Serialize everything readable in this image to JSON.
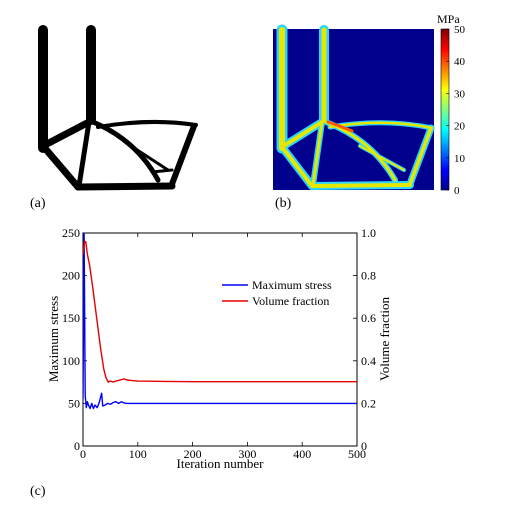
{
  "panels": {
    "a_label": "(a)",
    "b_label": "(b)",
    "c_label": "(c)"
  },
  "colorbar": {
    "unit": "MPa",
    "ticks": [
      "0",
      "10",
      "20",
      "30",
      "40",
      "50"
    ],
    "colors": [
      "#00008f",
      "#0000ff",
      "#0080ff",
      "#00ffff",
      "#80ff80",
      "#ffff00",
      "#ff8000",
      "#ff0000",
      "#800000"
    ]
  },
  "stress_map": {
    "background": "#00008c",
    "member_color": "#e6e600",
    "edge_color": "#2ad6ff",
    "hot_color": "#ff5a00"
  },
  "chart_data": {
    "type": "line",
    "xlabel": "Iteration number",
    "ylabel_left": "Maximum stress",
    "ylabel_right": "Volume fraction",
    "xlim": [
      0,
      500
    ],
    "ylim_left": [
      0,
      250
    ],
    "ylim_right": [
      0,
      1.0
    ],
    "x_ticks": [
      "0",
      "100",
      "200",
      "300",
      "400",
      "500"
    ],
    "y_left_ticks": [
      "0",
      "50",
      "100",
      "150",
      "200",
      "250"
    ],
    "y_right_ticks": [
      "0",
      "0.2",
      "0.4",
      "0.6",
      "0.8",
      "1.0"
    ],
    "legend_position": "upper-right",
    "grid": false,
    "series": [
      {
        "name": "Maximum stress",
        "axis": "left",
        "color": "#0000ff",
        "points": [
          [
            0,
            55
          ],
          [
            2,
            250
          ],
          [
            3,
            160
          ],
          [
            4,
            60
          ],
          [
            6,
            45
          ],
          [
            8,
            52
          ],
          [
            10,
            48
          ],
          [
            13,
            44
          ],
          [
            16,
            50
          ],
          [
            19,
            44
          ],
          [
            22,
            48
          ],
          [
            26,
            45
          ],
          [
            30,
            52
          ],
          [
            34,
            62
          ],
          [
            36,
            47
          ],
          [
            40,
            48
          ],
          [
            45,
            50
          ],
          [
            50,
            49
          ],
          [
            55,
            51
          ],
          [
            60,
            52
          ],
          [
            65,
            50
          ],
          [
            70,
            52
          ],
          [
            75,
            50.5
          ],
          [
            80,
            50
          ],
          [
            90,
            50
          ],
          [
            100,
            50
          ],
          [
            150,
            50
          ],
          [
            200,
            50
          ],
          [
            300,
            50
          ],
          [
            400,
            50
          ],
          [
            500,
            50
          ]
        ]
      },
      {
        "name": "Volume fraction",
        "axis": "right",
        "color": "#e60000",
        "points": [
          [
            0,
            0.9
          ],
          [
            3,
            0.96
          ],
          [
            5,
            0.96
          ],
          [
            8,
            0.9
          ],
          [
            12,
            0.85
          ],
          [
            18,
            0.74
          ],
          [
            25,
            0.6
          ],
          [
            32,
            0.46
          ],
          [
            38,
            0.36
          ],
          [
            42,
            0.32
          ],
          [
            46,
            0.3
          ],
          [
            50,
            0.305
          ],
          [
            55,
            0.3
          ],
          [
            60,
            0.305
          ],
          [
            68,
            0.31
          ],
          [
            75,
            0.315
          ],
          [
            80,
            0.31
          ],
          [
            90,
            0.307
          ],
          [
            100,
            0.305
          ],
          [
            150,
            0.303
          ],
          [
            200,
            0.302
          ],
          [
            300,
            0.302
          ],
          [
            400,
            0.302
          ],
          [
            500,
            0.302
          ]
        ]
      }
    ]
  }
}
